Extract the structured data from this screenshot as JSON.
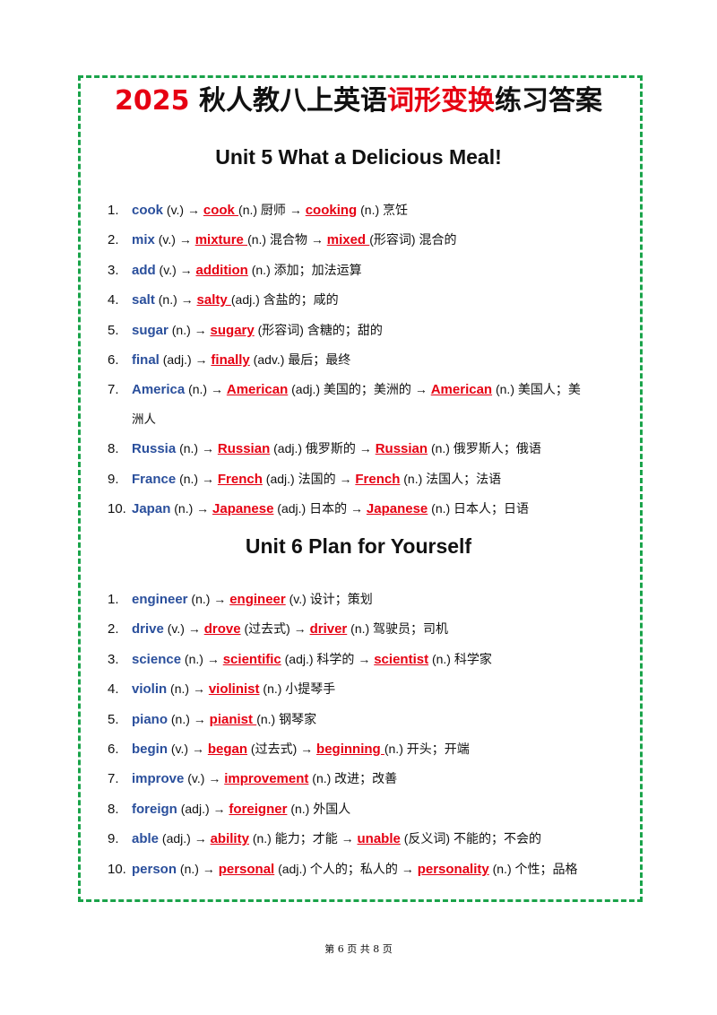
{
  "title": {
    "part1": "2025",
    "part2": "秋人教八上英语",
    "part3": "词形变换",
    "part4": "练习答案"
  },
  "unit5": {
    "heading": "Unit 5 What a Delicious Meal!",
    "items": [
      {
        "num": "1.",
        "segs": [
          [
            "b",
            "cook"
          ],
          [
            "t",
            " (v.) → "
          ],
          [
            "a",
            "cook "
          ],
          [
            "t",
            "(n.)  厨师  → "
          ],
          [
            "a",
            " cooking"
          ],
          [
            "t",
            " (n.)  烹饪"
          ]
        ]
      },
      {
        "num": "2.",
        "segs": [
          [
            "b",
            "mix"
          ],
          [
            "t",
            " (v.) → "
          ],
          [
            "a",
            "mixture "
          ],
          [
            "t",
            "(n.)  混合物  → "
          ],
          [
            "a",
            "mixed "
          ],
          [
            "t",
            "(形容词)  混合的"
          ]
        ]
      },
      {
        "num": "3.",
        "segs": [
          [
            "b",
            "add"
          ],
          [
            "t",
            " (v.) → "
          ],
          [
            "a",
            "addition"
          ],
          [
            "t",
            " (n.)  添加；加法运算"
          ]
        ]
      },
      {
        "num": "4.",
        "segs": [
          [
            "b",
            "salt"
          ],
          [
            "t",
            " (n.) → "
          ],
          [
            "a",
            " salty "
          ],
          [
            "t",
            "(adj.)  含盐的；咸的"
          ]
        ]
      },
      {
        "num": "5.",
        "segs": [
          [
            "b",
            "sugar"
          ],
          [
            "t",
            " (n.) → "
          ],
          [
            "a",
            " sugary"
          ],
          [
            "t",
            " (形容词)  含糖的；甜的"
          ]
        ]
      },
      {
        "num": "6.",
        "segs": [
          [
            "b",
            "final"
          ],
          [
            "t",
            " (adj.) → "
          ],
          [
            "a",
            " finally"
          ],
          [
            "t",
            " (adv.)  最后；最终"
          ]
        ]
      },
      {
        "num": "7.",
        "segs": [
          [
            "b",
            "America"
          ],
          [
            "t",
            " (n.) → "
          ],
          [
            "a",
            "American"
          ],
          [
            "t",
            " (adj.)  美国的；美洲的  → "
          ],
          [
            "a",
            "American"
          ],
          [
            "t",
            " (n.)  美国人；美"
          ]
        ],
        "cont": "洲人"
      },
      {
        "num": "8.",
        "segs": [
          [
            "b",
            "Russia"
          ],
          [
            "t",
            " (n.) → "
          ],
          [
            "a",
            "Russian"
          ],
          [
            "t",
            " (adj.)  俄罗斯的  → "
          ],
          [
            "a",
            "Russian"
          ],
          [
            "t",
            " (n.)  俄罗斯人；俄语"
          ]
        ]
      },
      {
        "num": "9.",
        "segs": [
          [
            "b",
            "France"
          ],
          [
            "t",
            " (n.) → "
          ],
          [
            "a",
            " French"
          ],
          [
            "t",
            " (adj.)  法国的  → "
          ],
          [
            "a",
            " French"
          ],
          [
            "t",
            " (n.)  法国人；法语"
          ]
        ]
      },
      {
        "num": "10.",
        "segs": [
          [
            "b",
            "Japan"
          ],
          [
            "t",
            " (n.) → "
          ],
          [
            "a",
            " Japanese"
          ],
          [
            "t",
            " (adj.)  日本的  → "
          ],
          [
            "a",
            " Japanese"
          ],
          [
            "t",
            " (n.)  日本人；日语"
          ]
        ]
      }
    ]
  },
  "unit6": {
    "heading": "Unit 6 Plan for Yourself",
    "items": [
      {
        "num": "1.",
        "segs": [
          [
            "b",
            "engineer"
          ],
          [
            "t",
            " (n.) → "
          ],
          [
            "a",
            "engineer"
          ],
          [
            "t",
            " (v.)  设计；策划"
          ]
        ]
      },
      {
        "num": "2.",
        "segs": [
          [
            "b",
            "drive"
          ],
          [
            "t",
            " (v.) → "
          ],
          [
            "a",
            "drove"
          ],
          [
            "t",
            " (过去式) → "
          ],
          [
            "a",
            "driver"
          ],
          [
            "t",
            " (n.)  驾驶员；司机"
          ]
        ]
      },
      {
        "num": "3.",
        "segs": [
          [
            "b",
            "science"
          ],
          [
            "t",
            " (n.) → "
          ],
          [
            "a",
            "scientific"
          ],
          [
            "t",
            " (adj.)  科学的  → "
          ],
          [
            "a",
            " scientist"
          ],
          [
            "t",
            " (n.)  科学家"
          ]
        ]
      },
      {
        "num": "4.",
        "segs": [
          [
            "b",
            "violin"
          ],
          [
            "t",
            " (n.) → "
          ],
          [
            "a",
            "violinist"
          ],
          [
            "t",
            " (n.)  小提琴手"
          ]
        ]
      },
      {
        "num": "5.",
        "segs": [
          [
            "b",
            "piano"
          ],
          [
            "t",
            " (n.) → "
          ],
          [
            "a",
            "pianist "
          ],
          [
            "t",
            "(n.)  钢琴家"
          ]
        ]
      },
      {
        "num": "6.",
        "segs": [
          [
            "b",
            "begin"
          ],
          [
            "t",
            " (v.) → "
          ],
          [
            "a",
            "began"
          ],
          [
            "t",
            " (过去式) → "
          ],
          [
            "a",
            "beginning "
          ],
          [
            "t",
            "(n.)  开头；开端"
          ]
        ]
      },
      {
        "num": "7.",
        "segs": [
          [
            "b",
            "improve"
          ],
          [
            "t",
            " (v.) → "
          ],
          [
            "a",
            "improvement"
          ],
          [
            "t",
            " (n.)  改进；改善"
          ]
        ]
      },
      {
        "num": "8.",
        "segs": [
          [
            "b",
            "foreign"
          ],
          [
            "t",
            " (adj.) → "
          ],
          [
            "a",
            " foreigner"
          ],
          [
            "t",
            " (n.)  外国人"
          ]
        ]
      },
      {
        "num": "9.",
        "segs": [
          [
            "b",
            "able"
          ],
          [
            "t",
            " (adj.) → "
          ],
          [
            "a",
            "ability"
          ],
          [
            "t",
            " (n.)  能力；才能  → "
          ],
          [
            "a",
            "unable"
          ],
          [
            "t",
            " (反义词)  不能的；不会的"
          ]
        ]
      },
      {
        "num": "10.",
        "segs": [
          [
            "b",
            "person"
          ],
          [
            "t",
            " (n.) → "
          ],
          [
            "a",
            "personal"
          ],
          [
            "t",
            " (adj.)  个人的；私人的  → "
          ],
          [
            "a",
            " personality"
          ],
          [
            "t",
            " (n.)  个性；品格"
          ]
        ]
      }
    ]
  },
  "footer": "第 6 页 共 8 页",
  "colors": {
    "frame": "#1aa34a",
    "answer": "#e60012",
    "base": "#2a4f9c"
  }
}
